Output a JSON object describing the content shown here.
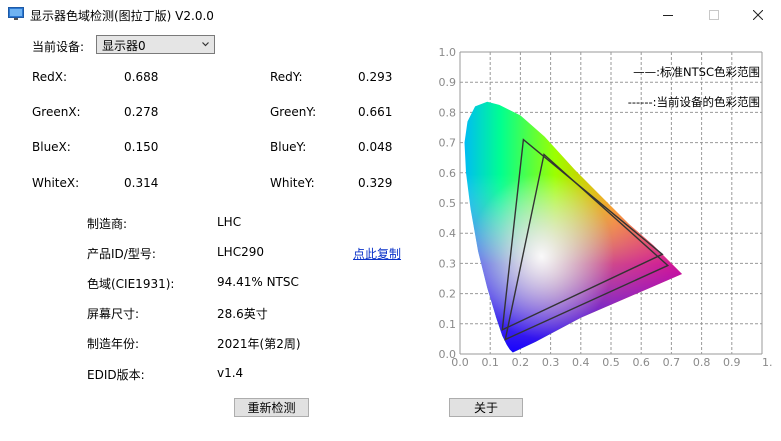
{
  "window": {
    "title": "显示器色域检测(图拉丁版) V2.0.0"
  },
  "device": {
    "label": "当前设备:",
    "selected": "显示器0"
  },
  "chromaticity": [
    {
      "key": "redx",
      "label": "RedX:",
      "value": "0.688"
    },
    {
      "key": "redy",
      "label": "RedY:",
      "value": "0.293"
    },
    {
      "key": "greenx",
      "label": "GreenX:",
      "value": "0.278"
    },
    {
      "key": "greeny",
      "label": "GreenY:",
      "value": "0.661"
    },
    {
      "key": "bluex",
      "label": "BlueX:",
      "value": "0.150"
    },
    {
      "key": "bluey",
      "label": "BlueY:",
      "value": "0.048"
    },
    {
      "key": "whitex",
      "label": "WhiteX:",
      "value": "0.314"
    },
    {
      "key": "whitey",
      "label": "WhiteY:",
      "value": "0.329"
    }
  ],
  "info": [
    {
      "key": "manufacturer",
      "label": "制造商:",
      "value": "LHC"
    },
    {
      "key": "product-id",
      "label": "产品ID/型号:",
      "value": "LHC290"
    },
    {
      "key": "gamut",
      "label": "色域(CIE1931):",
      "value": "94.41% NTSC"
    },
    {
      "key": "screen-size",
      "label": "屏幕尺寸:",
      "value": "28.6英寸"
    },
    {
      "key": "manufacture-year",
      "label": "制造年份:",
      "value": "2021年(第2周)"
    },
    {
      "key": "edid-version",
      "label": "EDID版本:",
      "value": "v1.4"
    }
  ],
  "copy_link": "点此复制",
  "buttons": {
    "redetect": "重新检测",
    "about": "关于"
  },
  "chart_data": {
    "type": "scatter",
    "xlim": [
      0,
      1
    ],
    "ylim": [
      0,
      1
    ],
    "grid": true,
    "x_ticks": [
      "0.0",
      "0.1",
      "0.2",
      "0.3",
      "0.4",
      "0.5",
      "0.6",
      "0.7",
      "0.8",
      "0.9",
      "1."
    ],
    "y_ticks": [
      "0.0",
      "0.1",
      "0.2",
      "0.3",
      "0.4",
      "0.5",
      "0.6",
      "0.7",
      "0.8",
      "0.9",
      "1.0"
    ],
    "legend_position": "top-right",
    "legend": [
      {
        "name": "——:标准NTSC色彩范围",
        "style": "solid"
      },
      {
        "name": "------:当前设备的色彩范围",
        "style": "dashed"
      }
    ],
    "series": [
      {
        "name": "标准NTSC色彩范围",
        "points": [
          [
            0.67,
            0.33
          ],
          [
            0.21,
            0.71
          ],
          [
            0.14,
            0.08
          ]
        ]
      },
      {
        "name": "当前设备的色彩范围",
        "points": [
          [
            0.688,
            0.293
          ],
          [
            0.278,
            0.661
          ],
          [
            0.15,
            0.048
          ]
        ]
      }
    ],
    "colors": {
      "grid": "#9a9a9a",
      "axis_text": "#8a8a8a",
      "triangle": "#333333"
    }
  }
}
